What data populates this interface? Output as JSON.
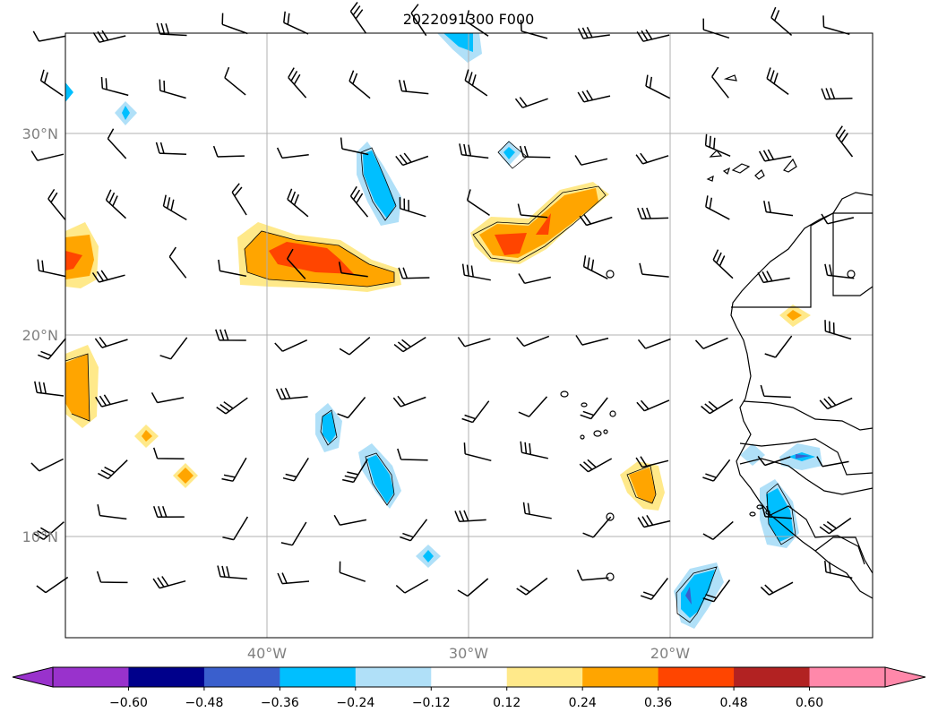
{
  "title": "2022091300 F000",
  "lon_ticks": [
    "40°W",
    "30°W",
    "20°W"
  ],
  "lat_ticks": [
    "30°N",
    "20°N",
    "10°N"
  ],
  "colorbar": {
    "labels": [
      "−0.60",
      "−0.48",
      "−0.36",
      "−0.24",
      "−0.12",
      "0.12",
      "0.24",
      "0.36",
      "0.48",
      "0.60"
    ],
    "under_color": "#9932CC",
    "over_color": "#FF88AA",
    "bin_colors": [
      "#00008B",
      "#3A5FCD",
      "#00BFFF",
      "#B0E0F8",
      "#FFFFFF",
      "#FFE98A",
      "#FFA500",
      "#FF4500",
      "#B22222"
    ]
  },
  "colors": {
    "pos_low": "#FFE98A",
    "pos_mid": "#FFA500",
    "pos_high": "#FF4500",
    "neg_low": "#B0E0F8",
    "neg_mid": "#00BFFF",
    "neg_high": "#3A5FCD",
    "gridline": "#B0B0B0",
    "axis_text": "#808080"
  }
}
